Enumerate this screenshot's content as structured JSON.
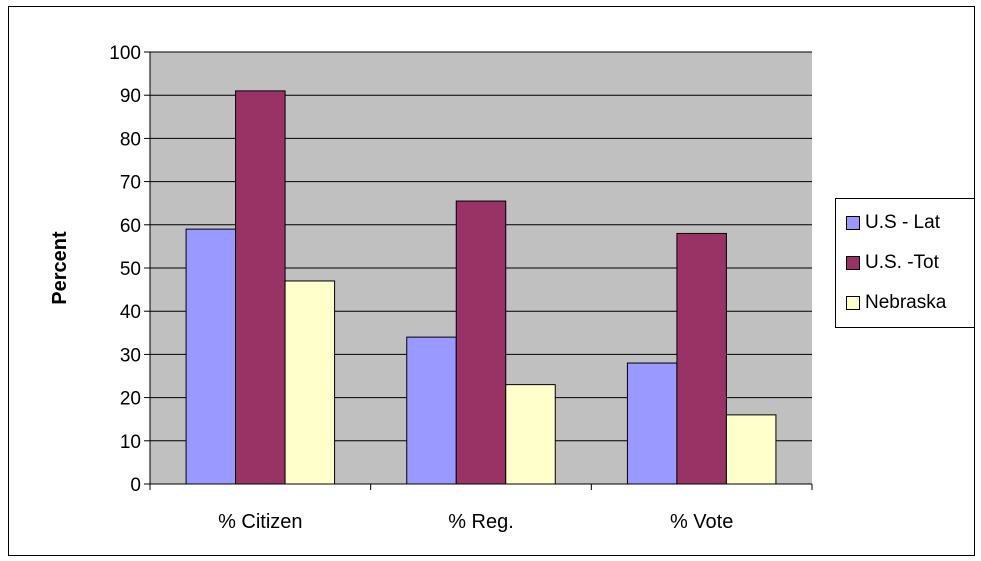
{
  "chart_data": {
    "type": "bar",
    "title": "",
    "xlabel": "",
    "ylabel": "Percent",
    "ylim": [
      0,
      100
    ],
    "yticks": [
      0,
      10,
      20,
      30,
      40,
      50,
      60,
      70,
      80,
      90,
      100
    ],
    "grid": true,
    "legend_position": "right",
    "categories": [
      "% Citizen",
      "% Reg.",
      "% Vote"
    ],
    "series": [
      {
        "name": "U.S - Lat",
        "color": "#9999ff",
        "values": [
          59,
          34,
          28
        ]
      },
      {
        "name": "U.S. -Tot",
        "color": "#993366",
        "values": [
          91,
          65.5,
          58
        ]
      },
      {
        "name": "Nebraska",
        "color": "#ffffcc",
        "values": [
          47,
          23,
          16
        ]
      }
    ],
    "plot_background": "#c0c0c0"
  }
}
